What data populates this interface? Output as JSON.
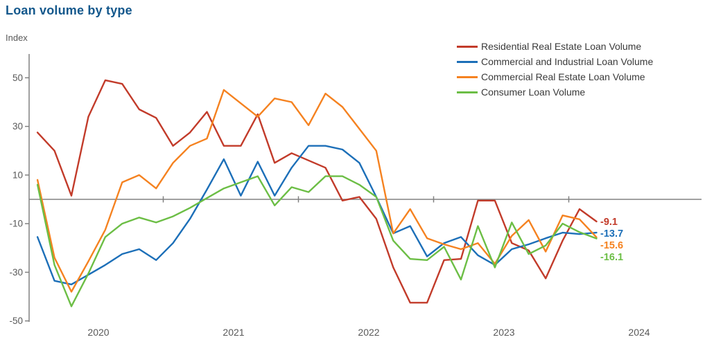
{
  "page": {
    "title": "Loan volume by type"
  },
  "colors": {
    "title_text": "#14588c",
    "axis_text": "#595959",
    "axis_line": "#808080",
    "legend_text": "#3a3a3a",
    "background": "#ffffff"
  },
  "chart_data": {
    "type": "line",
    "title": "Loan volume by type",
    "ylabel": "Index",
    "yticks": [
      50,
      30,
      10,
      -10,
      -30,
      -50
    ],
    "ylim": [
      -50,
      58
    ],
    "xticks": [
      "2020",
      "2021",
      "2022",
      "2023",
      "2024"
    ],
    "x_start_year": 2020.07,
    "x_step_years": 0.1253,
    "n_points": 34,
    "zero_line": true,
    "grid": false,
    "legend_position": "top-right",
    "series": [
      {
        "name": "Residential Real Estate Loan Volume",
        "color": "#c23b2a",
        "end_label": "-9.1",
        "values": [
          27.5,
          20,
          1.5,
          34,
          49,
          47.5,
          37,
          33.5,
          22,
          27.5,
          36,
          22,
          22,
          35,
          15,
          19,
          16,
          13,
          -0.5,
          1,
          -8,
          -28,
          -42.5,
          -42.5,
          -25,
          -24.5,
          -0.5,
          -0.5,
          -18,
          -21,
          -32.5,
          -17,
          -4,
          -9.1
        ]
      },
      {
        "name": "Commercial and Industrial Loan Volume",
        "color": "#1c6fb8",
        "end_label": "-13.7",
        "values": [
          -15.5,
          -33.5,
          -35,
          -31,
          -27,
          -22.5,
          -20.5,
          -25,
          -18,
          -8,
          4,
          16.5,
          1.5,
          15.5,
          1.5,
          13,
          22,
          22,
          20.5,
          15,
          1,
          -14,
          -11,
          -23.5,
          -18,
          -15.5,
          -23,
          -27,
          -20.5,
          -18.5,
          -16,
          -13.7,
          -14.3,
          -13.7
        ]
      },
      {
        "name": "Commercial Real Estate Loan Volume",
        "color": "#f58220",
        "end_label": "-15.6",
        "values": [
          8,
          -24,
          -38,
          -25.5,
          -12.5,
          7,
          10,
          4.5,
          15,
          22,
          25,
          45,
          39.5,
          34,
          41.5,
          40,
          30.5,
          43.5,
          38,
          29,
          20,
          -14,
          -4,
          -16,
          -18.5,
          -20.5,
          -18,
          -26.5,
          -15,
          -8.5,
          -21.5,
          -6.6,
          -8.2,
          -15.6
        ]
      },
      {
        "name": "Consumer Loan Volume",
        "color": "#6cbe45",
        "end_label": "-16.1",
        "values": [
          6,
          -27,
          -44,
          -30.5,
          -15.5,
          -10,
          -7.5,
          -9.5,
          -7,
          -3.5,
          0.5,
          4.5,
          7,
          9.5,
          -2.5,
          5,
          3,
          9.5,
          9.5,
          6,
          1,
          -17,
          -24.5,
          -25,
          -19.5,
          -33,
          -11,
          -28,
          -9.5,
          -22.5,
          -19,
          -10,
          -13.5,
          -16.1
        ]
      }
    ]
  }
}
